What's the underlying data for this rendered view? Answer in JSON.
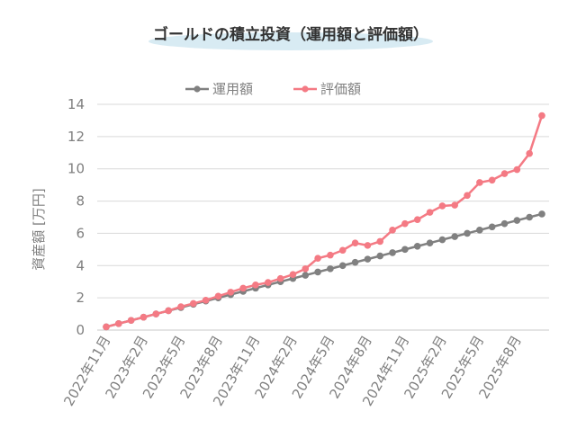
{
  "chart_data": {
    "type": "line",
    "title": "ゴールドの積立投資（運用額と評価額）",
    "ylabel": "資産額 [万円]",
    "xlabel": "",
    "ylim": [
      0,
      14
    ],
    "yticks": [
      0,
      2,
      4,
      6,
      8,
      10,
      12,
      14
    ],
    "grid": true,
    "legend_position": "top",
    "x": [
      "2022-11",
      "2022-12",
      "2023-01",
      "2023-02",
      "2023-03",
      "2023-04",
      "2023-05",
      "2023-06",
      "2023-07",
      "2023-08",
      "2023-09",
      "2023-10",
      "2023-11",
      "2023-12",
      "2024-01",
      "2024-02",
      "2024-03",
      "2024-04",
      "2024-05",
      "2024-06",
      "2024-07",
      "2024-08",
      "2024-09",
      "2024-10",
      "2024-11",
      "2024-12",
      "2025-01",
      "2025-02",
      "2025-03",
      "2025-04",
      "2025-05",
      "2025-06",
      "2025-07",
      "2025-08",
      "2025-09",
      "2025-10"
    ],
    "tick_labels": [
      "2022年11月",
      "2023年2月",
      "2023年5月",
      "2023年8月",
      "2023年11月",
      "2024年2月",
      "2024年5月",
      "2024年8月",
      "2024年11月",
      "2025年2月",
      "2025年5月",
      "2025年8月"
    ],
    "tick_every": 3,
    "series": [
      {
        "name": "運用額",
        "color": "#808080",
        "values": [
          0.2,
          0.4,
          0.6,
          0.8,
          1.0,
          1.2,
          1.4,
          1.6,
          1.8,
          2.0,
          2.2,
          2.4,
          2.6,
          2.8,
          3.0,
          3.2,
          3.4,
          3.6,
          3.8,
          4.0,
          4.2,
          4.4,
          4.6,
          4.8,
          5.0,
          5.2,
          5.4,
          5.6,
          5.8,
          6.0,
          6.2,
          6.4,
          6.6,
          6.8,
          7.0,
          7.2
        ]
      },
      {
        "name": "評価額",
        "color": "#f47a84",
        "values": [
          0.2,
          0.4,
          0.6,
          0.8,
          1.0,
          1.2,
          1.45,
          1.65,
          1.85,
          2.1,
          2.35,
          2.6,
          2.8,
          2.95,
          3.2,
          3.45,
          3.8,
          4.45,
          4.65,
          4.95,
          5.4,
          5.25,
          5.5,
          6.2,
          6.6,
          6.85,
          7.3,
          7.7,
          7.75,
          8.35,
          9.15,
          9.3,
          9.7,
          9.95,
          10.95,
          13.3
        ]
      }
    ]
  }
}
